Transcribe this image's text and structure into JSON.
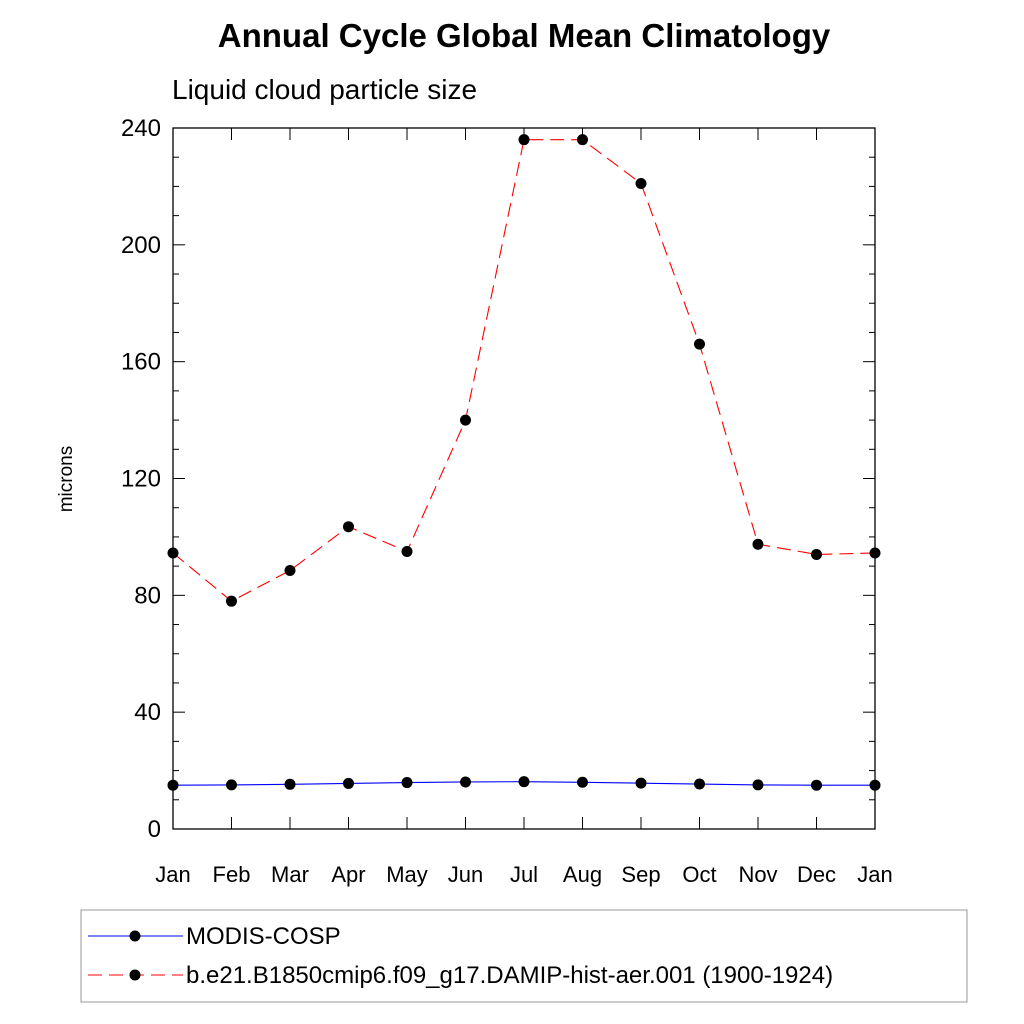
{
  "chart_data": {
    "type": "line",
    "title": "Annual Cycle Global Mean Climatology",
    "subtitle": "Liquid cloud particle size",
    "xlabel": "",
    "ylabel": "microns",
    "categories": [
      "Jan",
      "Feb",
      "Mar",
      "Apr",
      "May",
      "Jun",
      "Jul",
      "Aug",
      "Sep",
      "Oct",
      "Nov",
      "Dec",
      "Jan"
    ],
    "ylim": [
      0,
      240
    ],
    "yticks": [
      0,
      40,
      80,
      120,
      160,
      200,
      240
    ],
    "series": [
      {
        "name": "MODIS-COSP",
        "color": "#0000ff",
        "line_style": "solid",
        "marker": "filled-circle",
        "values": [
          15.0,
          15.1,
          15.3,
          15.6,
          15.9,
          16.1,
          16.2,
          16.0,
          15.7,
          15.4,
          15.1,
          15.0,
          15.0
        ]
      },
      {
        "name": "b.e21.B1850cmip6.f09_g17.DAMIP-hist-aer.001 (1900-1924)",
        "color": "#ff0000",
        "line_style": "dashed",
        "marker": "filled-circle",
        "values": [
          94.5,
          78.0,
          88.5,
          103.5,
          95.0,
          140.0,
          236.0,
          236.0,
          221.0,
          166.0,
          97.5,
          94.0,
          94.5
        ]
      }
    ],
    "legend": {
      "position": "bottom"
    },
    "grid": false
  }
}
